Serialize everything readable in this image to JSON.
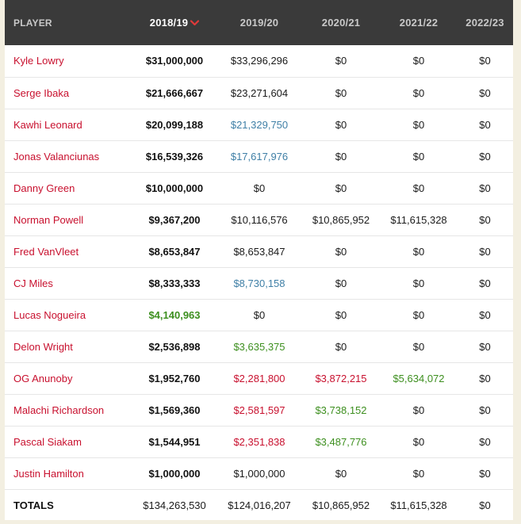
{
  "header": {
    "player": "PLAYER",
    "seasons": [
      "2018/19",
      "2019/20",
      "2020/21",
      "2021/22",
      "2022/23"
    ],
    "sorted_column": "2018/19",
    "sort_icon": "chevron-down-icon"
  },
  "colors": {
    "header_bg": "#3a3a3a",
    "player_link": "#c8102e",
    "team_option": "#3f7fa6",
    "player_option": "#3d8f1f",
    "qualifying_offer": "#c8102e",
    "page_bg": "#f3efe1"
  },
  "rows": [
    {
      "player": "Kyle Lowry",
      "cells": [
        {
          "v": "$31,000,000",
          "c": "bold"
        },
        {
          "v": "$33,296,296",
          "c": "plain"
        },
        {
          "v": "$0",
          "c": "plain"
        },
        {
          "v": "$0",
          "c": "plain"
        },
        {
          "v": "$0",
          "c": "plain"
        }
      ]
    },
    {
      "player": "Serge Ibaka",
      "cells": [
        {
          "v": "$21,666,667",
          "c": "bold"
        },
        {
          "v": "$23,271,604",
          "c": "plain"
        },
        {
          "v": "$0",
          "c": "plain"
        },
        {
          "v": "$0",
          "c": "plain"
        },
        {
          "v": "$0",
          "c": "plain"
        }
      ]
    },
    {
      "player": "Kawhi Leonard",
      "cells": [
        {
          "v": "$20,099,188",
          "c": "bold"
        },
        {
          "v": "$21,329,750",
          "c": "blue"
        },
        {
          "v": "$0",
          "c": "plain"
        },
        {
          "v": "$0",
          "c": "plain"
        },
        {
          "v": "$0",
          "c": "plain"
        }
      ]
    },
    {
      "player": "Jonas Valanciunas",
      "cells": [
        {
          "v": "$16,539,326",
          "c": "bold"
        },
        {
          "v": "$17,617,976",
          "c": "blue"
        },
        {
          "v": "$0",
          "c": "plain"
        },
        {
          "v": "$0",
          "c": "plain"
        },
        {
          "v": "$0",
          "c": "plain"
        }
      ]
    },
    {
      "player": "Danny Green",
      "cells": [
        {
          "v": "$10,000,000",
          "c": "bold"
        },
        {
          "v": "$0",
          "c": "plain"
        },
        {
          "v": "$0",
          "c": "plain"
        },
        {
          "v": "$0",
          "c": "plain"
        },
        {
          "v": "$0",
          "c": "plain"
        }
      ]
    },
    {
      "player": "Norman Powell",
      "cells": [
        {
          "v": "$9,367,200",
          "c": "bold"
        },
        {
          "v": "$10,116,576",
          "c": "plain"
        },
        {
          "v": "$10,865,952",
          "c": "plain"
        },
        {
          "v": "$11,615,328",
          "c": "plain"
        },
        {
          "v": "$0",
          "c": "plain"
        }
      ]
    },
    {
      "player": "Fred VanVleet",
      "cells": [
        {
          "v": "$8,653,847",
          "c": "bold"
        },
        {
          "v": "$8,653,847",
          "c": "plain"
        },
        {
          "v": "$0",
          "c": "plain"
        },
        {
          "v": "$0",
          "c": "plain"
        },
        {
          "v": "$0",
          "c": "plain"
        }
      ]
    },
    {
      "player": "CJ Miles",
      "cells": [
        {
          "v": "$8,333,333",
          "c": "bold"
        },
        {
          "v": "$8,730,158",
          "c": "blue"
        },
        {
          "v": "$0",
          "c": "plain"
        },
        {
          "v": "$0",
          "c": "plain"
        },
        {
          "v": "$0",
          "c": "plain"
        }
      ]
    },
    {
      "player": "Lucas Nogueira",
      "cells": [
        {
          "v": "$4,140,963",
          "c": "bold green"
        },
        {
          "v": "$0",
          "c": "plain"
        },
        {
          "v": "$0",
          "c": "plain"
        },
        {
          "v": "$0",
          "c": "plain"
        },
        {
          "v": "$0",
          "c": "plain"
        }
      ]
    },
    {
      "player": "Delon Wright",
      "cells": [
        {
          "v": "$2,536,898",
          "c": "bold"
        },
        {
          "v": "$3,635,375",
          "c": "green"
        },
        {
          "v": "$0",
          "c": "plain"
        },
        {
          "v": "$0",
          "c": "plain"
        },
        {
          "v": "$0",
          "c": "plain"
        }
      ]
    },
    {
      "player": "OG Anunoby",
      "cells": [
        {
          "v": "$1,952,760",
          "c": "bold"
        },
        {
          "v": "$2,281,800",
          "c": "red"
        },
        {
          "v": "$3,872,215",
          "c": "red"
        },
        {
          "v": "$5,634,072",
          "c": "green"
        },
        {
          "v": "$0",
          "c": "plain"
        }
      ]
    },
    {
      "player": "Malachi Richardson",
      "cells": [
        {
          "v": "$1,569,360",
          "c": "bold"
        },
        {
          "v": "$2,581,597",
          "c": "red"
        },
        {
          "v": "$3,738,152",
          "c": "green"
        },
        {
          "v": "$0",
          "c": "plain"
        },
        {
          "v": "$0",
          "c": "plain"
        }
      ]
    },
    {
      "player": "Pascal Siakam",
      "cells": [
        {
          "v": "$1,544,951",
          "c": "bold"
        },
        {
          "v": "$2,351,838",
          "c": "red"
        },
        {
          "v": "$3,487,776",
          "c": "green"
        },
        {
          "v": "$0",
          "c": "plain"
        },
        {
          "v": "$0",
          "c": "plain"
        }
      ]
    },
    {
      "player": "Justin Hamilton",
      "cells": [
        {
          "v": "$1,000,000",
          "c": "bold"
        },
        {
          "v": "$1,000,000",
          "c": "plain"
        },
        {
          "v": "$0",
          "c": "plain"
        },
        {
          "v": "$0",
          "c": "plain"
        },
        {
          "v": "$0",
          "c": "plain"
        }
      ]
    }
  ],
  "totals": {
    "label": "TOTALS",
    "values": [
      "$134,263,530",
      "$124,016,207",
      "$10,865,952",
      "$11,615,328",
      "$0"
    ]
  }
}
